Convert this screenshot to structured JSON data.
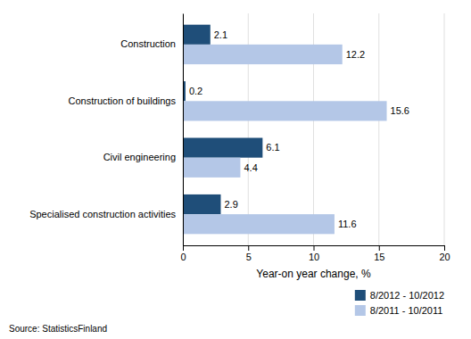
{
  "chart_data": {
    "type": "bar",
    "orientation": "horizontal",
    "categories": [
      "Construction",
      "Construction of buildings",
      "Civil engineering",
      "Specialised construction activities"
    ],
    "series": [
      {
        "name": "8/2012 - 10/2012",
        "color": "#1f4e79",
        "values": [
          2.1,
          0.2,
          6.1,
          2.9
        ]
      },
      {
        "name": "8/2011 - 10/2011",
        "color": "#b4c7e7",
        "values": [
          12.2,
          15.6,
          4.4,
          11.6
        ]
      }
    ],
    "xlabel": "Year-on year change, %",
    "xlim": [
      0,
      20
    ],
    "xticks": [
      0,
      5,
      10,
      15,
      20
    ],
    "grid": true,
    "data_labels": true,
    "legend": "lower right",
    "annotations": [
      "Source: StatisticsFinland"
    ]
  }
}
